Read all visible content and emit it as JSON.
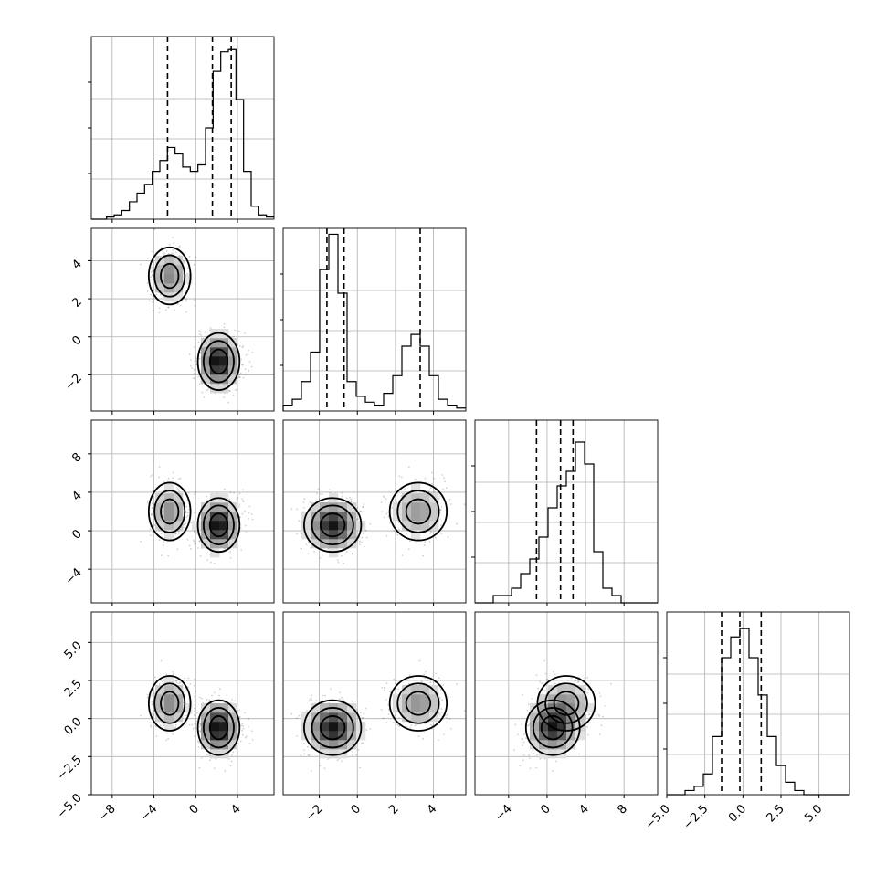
{
  "chart_data": {
    "type": "corner",
    "grid": true,
    "variables": [
      {
        "range": [
          -10,
          7.5
        ],
        "ticks": [
          -8,
          -4,
          0,
          4
        ],
        "tick_labels": [
          "−8",
          "−4",
          "0",
          "4"
        ]
      },
      {
        "range": [
          -3.9,
          5.7
        ],
        "ticks": [
          -2,
          0,
          2,
          4
        ],
        "tick_labels": [
          "−2",
          "0",
          "2",
          "4"
        ]
      },
      {
        "range": [
          -7.5,
          11.5
        ],
        "ticks": [
          -4,
          0,
          4,
          8
        ],
        "tick_labels": [
          "−4",
          "0",
          "4",
          "8"
        ]
      },
      {
        "range": [
          -5.0,
          7.0
        ],
        "ticks": [
          -5.0,
          -2.5,
          0.0,
          2.5,
          5.0
        ],
        "tick_labels": [
          "−5.0",
          "−2.5",
          "0.0",
          "2.5",
          "5.0"
        ]
      }
    ],
    "quantiles": [
      [
        -2.7,
        1.6,
        3.4
      ],
      [
        -1.6,
        -0.7,
        3.3
      ],
      [
        -1.1,
        1.4,
        2.7
      ],
      [
        -1.4,
        -0.2,
        1.2
      ]
    ],
    "marginal_histograms": [
      {
        "lo": -10,
        "hi": 7.5,
        "ymax": 0.84,
        "counts": [
          0.0,
          0.0,
          0.01,
          0.02,
          0.04,
          0.08,
          0.12,
          0.16,
          0.22,
          0.27,
          0.33,
          0.3,
          0.24,
          0.22,
          0.25,
          0.42,
          0.68,
          0.77,
          0.78,
          0.55,
          0.22,
          0.06,
          0.02,
          0.01
        ]
      },
      {
        "lo": -3.9,
        "hi": 5.7,
        "ymax": 0.62,
        "counts": [
          0.02,
          0.04,
          0.1,
          0.2,
          0.48,
          0.6,
          0.4,
          0.1,
          0.05,
          0.03,
          0.02,
          0.06,
          0.12,
          0.22,
          0.26,
          0.22,
          0.12,
          0.04,
          0.02,
          0.01
        ]
      },
      {
        "lo": -7.5,
        "hi": 11.5,
        "ymax": 0.25,
        "counts": [
          0.0,
          0.0,
          0.01,
          0.01,
          0.02,
          0.04,
          0.06,
          0.09,
          0.13,
          0.16,
          0.18,
          0.22,
          0.19,
          0.07,
          0.02,
          0.01,
          0.0,
          0.0,
          0.0,
          0.0
        ]
      },
      {
        "lo": -5.0,
        "hi": 7.0,
        "ymax": 0.44,
        "counts": [
          0.0,
          0.0,
          0.01,
          0.02,
          0.05,
          0.14,
          0.33,
          0.38,
          0.4,
          0.33,
          0.24,
          0.14,
          0.07,
          0.03,
          0.01,
          0.0,
          0.0,
          0.0,
          0.0,
          0.0
        ]
      }
    ],
    "clusters": [
      {
        "weight": 0.32,
        "mean": [
          -2.5,
          3.2,
          2.0,
          1.0
        ],
        "sd": [
          1.0,
          0.75,
          1.5,
          0.9
        ],
        "rho": 0.0
      },
      {
        "weight": 0.68,
        "mean": [
          2.2,
          -1.3,
          0.6,
          -0.6
        ],
        "sd": [
          1.0,
          0.75,
          1.4,
          0.9
        ],
        "rho": 0.35
      }
    ]
  }
}
